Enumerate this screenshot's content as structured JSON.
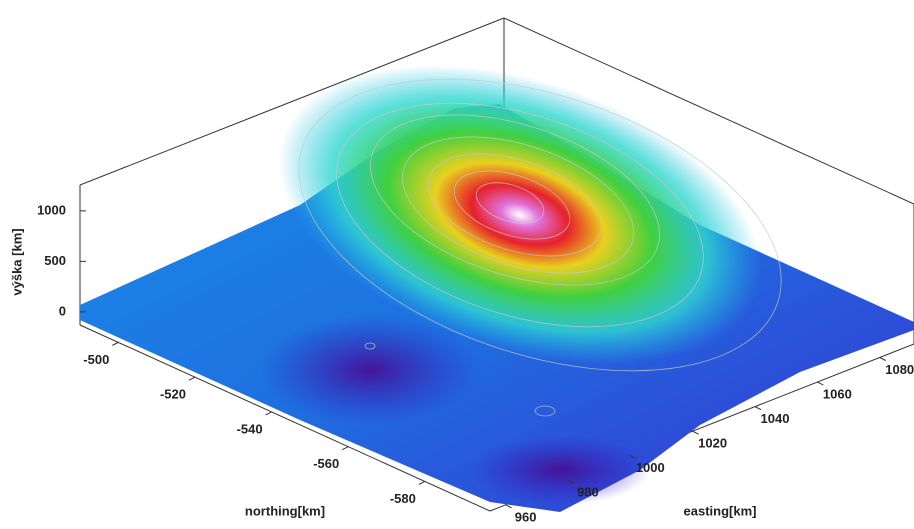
{
  "chart_data": {
    "type": "surface",
    "xlabel": "easting[km]",
    "ylabel": "northing[km]",
    "zlabel": "výška [km]",
    "xlim": [
      955,
      1091
    ],
    "xticks": [
      960,
      980,
      1000,
      1020,
      1040,
      1060,
      1080
    ],
    "ylim": [
      -597,
      -490
    ],
    "yticks": [
      -500,
      -520,
      -540,
      -560,
      -580
    ],
    "zlim": [
      -130,
      1256
    ],
    "zticks": [
      0,
      500,
      1000
    ]
  }
}
